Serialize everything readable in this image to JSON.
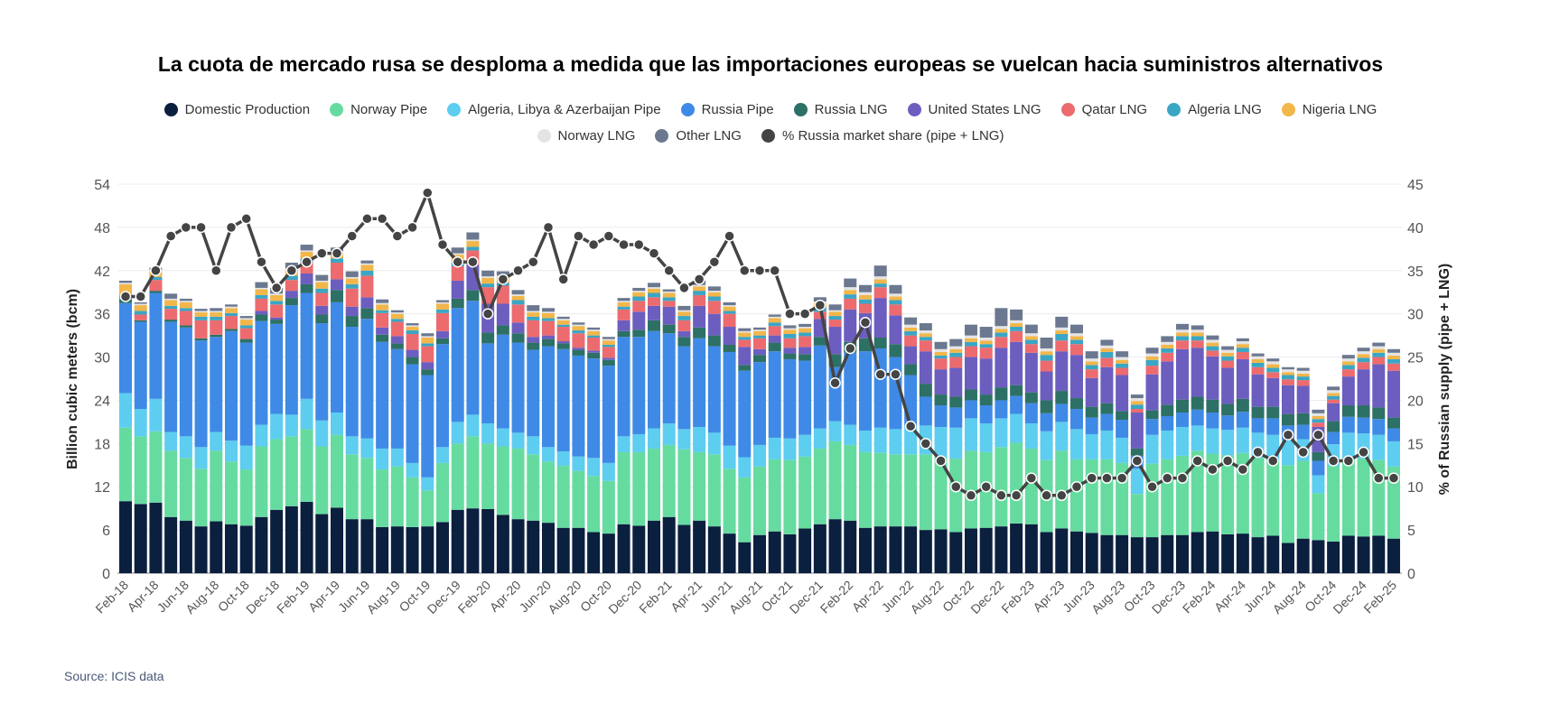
{
  "chart_data": {
    "type": "bar",
    "stacked": true,
    "title": "La cuota de mercado rusa se desploma a medida que las importaciones europeas se vuelcan hacia suministros alternativos",
    "ylabel": "Billion cubic meters (bcm)",
    "y2label": "% of Russian supply (pipe + LNG)",
    "ylim": [
      0,
      54
    ],
    "y2lim": [
      0,
      45
    ],
    "yticks": [
      0,
      6,
      12,
      18,
      24,
      30,
      36,
      42,
      48,
      54
    ],
    "y2ticks": [
      0,
      5,
      10,
      15,
      20,
      25,
      30,
      35,
      40,
      45
    ],
    "grid": true,
    "legend_position": "top",
    "categories": [
      "Feb-18",
      "Mar-18",
      "Apr-18",
      "May-18",
      "Jun-18",
      "Jul-18",
      "Aug-18",
      "Sep-18",
      "Oct-18",
      "Nov-18",
      "Dec-18",
      "Jan-19",
      "Feb-19",
      "Mar-19",
      "Apr-19",
      "May-19",
      "Jun-19",
      "Jul-19",
      "Aug-19",
      "Sep-19",
      "Oct-19",
      "Nov-19",
      "Dec-19",
      "Jan-20",
      "Feb-20",
      "Mar-20",
      "Apr-20",
      "May-20",
      "Jun-20",
      "Jul-20",
      "Aug-20",
      "Sep-20",
      "Oct-20",
      "Nov-20",
      "Dec-20",
      "Jan-21",
      "Feb-21",
      "Mar-21",
      "Apr-21",
      "May-21",
      "Jun-21",
      "Jul-21",
      "Aug-21",
      "Sep-21",
      "Oct-21",
      "Nov-21",
      "Dec-21",
      "Jan-22",
      "Feb-22",
      "Mar-22",
      "Apr-22",
      "May-22",
      "Jun-22",
      "Jul-22",
      "Aug-22",
      "Sep-22",
      "Oct-22",
      "Nov-22",
      "Dec-22",
      "Jan-23",
      "Feb-23",
      "Mar-23",
      "Apr-23",
      "May-23",
      "Jun-23",
      "Jul-23",
      "Aug-23",
      "Sep-23",
      "Oct-23",
      "Nov-23",
      "Dec-23",
      "Jan-24",
      "Feb-24",
      "Mar-24",
      "Apr-24",
      "May-24",
      "Jun-24",
      "Jul-24",
      "Aug-24",
      "Sep-24",
      "Oct-24",
      "Nov-24",
      "Dec-24",
      "Jan-25",
      "Feb-25"
    ],
    "series": [
      {
        "name": "Domestic Production",
        "color": "#0b1f3f",
        "values": [
          10.0,
          9.6,
          9.8,
          7.8,
          7.3,
          6.5,
          7.2,
          6.8,
          6.6,
          7.8,
          8.8,
          9.3,
          9.9,
          8.2,
          9.1,
          7.5,
          7.5,
          6.4,
          6.5,
          6.4,
          6.5,
          7.1,
          8.8,
          9.0,
          8.9,
          8.1,
          7.5,
          7.3,
          7.0,
          6.3,
          6.3,
          5.7,
          5.5,
          6.8,
          6.6,
          7.3,
          7.8,
          6.7,
          7.3,
          6.5,
          5.5,
          4.3,
          5.3,
          5.8,
          5.4,
          6.2,
          6.8,
          7.5,
          7.3,
          6.3,
          6.5,
          6.5,
          6.5,
          6.0,
          6.1,
          5.7,
          6.2,
          6.3,
          6.5,
          6.9,
          6.8,
          5.7,
          6.2,
          5.8,
          5.6,
          5.3,
          5.3,
          5.0,
          5.0,
          5.3,
          5.3,
          5.7,
          5.8,
          5.4,
          5.5,
          5.0,
          5.2,
          4.2,
          4.8,
          4.6,
          4.4,
          5.2,
          5.1,
          5.2,
          4.8
        ]
      },
      {
        "name": "Norway Pipe",
        "color": "#66dba0",
        "values": [
          10.2,
          9.4,
          9.9,
          9.2,
          8.7,
          8.0,
          9.8,
          8.7,
          7.8,
          9.8,
          9.8,
          9.7,
          10.1,
          9.4,
          10.1,
          9.0,
          8.5,
          8.0,
          8.3,
          6.9,
          5.0,
          8.2,
          9.2,
          10.0,
          9.1,
          9.5,
          9.8,
          9.2,
          8.5,
          8.6,
          7.9,
          7.8,
          7.3,
          10.0,
          10.2,
          10.0,
          10.0,
          10.5,
          9.5,
          10.0,
          9.0,
          9.0,
          9.5,
          10.0,
          10.3,
          10.0,
          10.5,
          10.8,
          10.5,
          10.5,
          10.2,
          10.0,
          10.0,
          10.5,
          10.0,
          10.2,
          10.8,
          10.5,
          11.0,
          11.2,
          10.5,
          10.0,
          10.8,
          10.0,
          10.2,
          10.5,
          10.0,
          6.0,
          10.2,
          10.5,
          11.0,
          11.3,
          10.8,
          11.0,
          11.2,
          11.0,
          10.5,
          10.8,
          10.8,
          6.5,
          10.5,
          10.8,
          10.8,
          10.5,
          10.0
        ]
      },
      {
        "name": "Algeria, Libya & Azerbaijan Pipe",
        "color": "#5dcdf0",
        "values": [
          4.8,
          3.8,
          4.5,
          2.6,
          3.0,
          3.0,
          2.6,
          2.9,
          3.3,
          3.0,
          3.5,
          3.0,
          4.2,
          3.6,
          3.1,
          2.5,
          2.7,
          2.9,
          2.5,
          2.0,
          1.8,
          2.2,
          3.0,
          3.0,
          2.8,
          2.5,
          2.2,
          2.5,
          2.0,
          2.0,
          2.0,
          2.5,
          2.5,
          2.2,
          2.5,
          2.8,
          3.0,
          2.8,
          3.5,
          3.0,
          3.2,
          2.8,
          3.0,
          3.0,
          3.0,
          3.0,
          2.8,
          2.8,
          2.8,
          3.0,
          3.5,
          3.5,
          4.0,
          4.0,
          4.2,
          4.3,
          4.5,
          4.0,
          4.0,
          4.0,
          3.5,
          4.0,
          4.0,
          4.2,
          3.5,
          4.0,
          3.5,
          3.5,
          4.0,
          4.0,
          4.0,
          3.5,
          3.5,
          3.5,
          3.5,
          3.5,
          3.5,
          3.5,
          3.0,
          2.5,
          3.0,
          3.5,
          3.5,
          3.5,
          3.5
        ]
      },
      {
        "name": "Russia Pipe",
        "color": "#3f8ae6",
        "values": [
          12.5,
          12.1,
          14.7,
          15.3,
          15.1,
          14.8,
          13.2,
          15.2,
          14.3,
          14.4,
          12.5,
          15.2,
          14.7,
          13.5,
          15.3,
          15.2,
          16.6,
          14.8,
          13.8,
          13.7,
          14.2,
          14.3,
          15.8,
          15.8,
          11.1,
          13.0,
          12.5,
          12.0,
          14.0,
          14.2,
          14.0,
          13.8,
          13.5,
          13.8,
          13.5,
          13.5,
          12.5,
          11.5,
          12.3,
          12.0,
          13.0,
          12.0,
          11.5,
          12.0,
          11.0,
          10.3,
          11.5,
          7.5,
          10.0,
          11.0,
          11.0,
          10.0,
          7.0,
          4.0,
          3.0,
          2.8,
          2.5,
          2.5,
          2.5,
          2.5,
          2.8,
          2.5,
          2.5,
          2.8,
          2.3,
          2.3,
          2.5,
          1.8,
          2.2,
          2.0,
          2.0,
          2.2,
          2.2,
          2.0,
          2.2,
          2.0,
          2.3,
          2.0,
          2.0,
          2.0,
          1.7,
          2.2,
          2.2,
          2.2,
          1.8
        ]
      },
      {
        "name": "Russia LNG",
        "color": "#2d7066",
        "values": [
          0.5,
          0.2,
          0.3,
          0.3,
          0.3,
          0.3,
          0.3,
          0.3,
          0.5,
          0.9,
          0.6,
          1.0,
          1.2,
          1.2,
          1.7,
          1.5,
          1.5,
          1.0,
          0.8,
          1.0,
          0.8,
          0.8,
          1.3,
          1.5,
          1.5,
          1.3,
          1.3,
          1.0,
          1.0,
          0.8,
          0.8,
          0.8,
          0.8,
          0.8,
          1.0,
          1.5,
          1.2,
          1.3,
          1.5,
          1.5,
          1.0,
          0.8,
          1.0,
          1.2,
          0.8,
          0.9,
          1.2,
          1.8,
          1.5,
          1.8,
          1.5,
          1.8,
          1.5,
          1.8,
          1.5,
          1.5,
          1.5,
          1.5,
          1.8,
          1.5,
          1.5,
          1.8,
          1.8,
          1.5,
          1.5,
          1.5,
          1.2,
          1.0,
          1.2,
          1.6,
          1.8,
          1.8,
          1.8,
          1.6,
          1.8,
          1.6,
          1.6,
          1.6,
          1.6,
          1.2,
          1.5,
          1.6,
          1.7,
          1.6,
          1.5
        ]
      },
      {
        "name": "United States LNG",
        "color": "#6c5ebf",
        "values": [
          0,
          0,
          0,
          0,
          0,
          0,
          0,
          0,
          0,
          0.5,
          0.3,
          1.0,
          1.5,
          1.2,
          1.5,
          1.3,
          1.5,
          1.0,
          1.0,
          1.0,
          1.0,
          1.0,
          2.5,
          3.5,
          4.0,
          3.0,
          1.5,
          0.8,
          0.5,
          0.3,
          0.3,
          0.3,
          0.3,
          1.5,
          2.5,
          2.0,
          2.5,
          0.8,
          3.0,
          3.0,
          2.5,
          2.5,
          0.8,
          1.0,
          0.8,
          1.0,
          2.5,
          3.8,
          4.5,
          3.5,
          5.5,
          4.0,
          2.5,
          4.5,
          3.5,
          4.0,
          4.5,
          5.0,
          5.5,
          6.0,
          5.5,
          4.0,
          5.5,
          6.0,
          4.0,
          5.0,
          5.0,
          5.0,
          5.0,
          6.0,
          7.0,
          6.8,
          6.0,
          5.0,
          5.5,
          4.5,
          4.0,
          4.0,
          3.8,
          3.5,
          2.5,
          4.0,
          5.0,
          6.0,
          6.5
        ]
      },
      {
        "name": "Qatar LNG",
        "color": "#ec6b6f",
        "values": [
          0,
          0.8,
          1.5,
          1.5,
          2.0,
          2.5,
          2.0,
          1.8,
          1.5,
          1.7,
          1.8,
          1.5,
          1.5,
          1.8,
          2.3,
          2.5,
          3.0,
          2.0,
          2.0,
          2.2,
          2.2,
          2.5,
          2.0,
          2.0,
          2.3,
          2.5,
          2.5,
          2.3,
          2.0,
          2.0,
          2.0,
          1.8,
          1.5,
          1.5,
          1.5,
          1.2,
          0.8,
          1.5,
          1.5,
          1.8,
          1.8,
          1.0,
          1.5,
          1.3,
          1.3,
          1.5,
          1.0,
          1.0,
          1.5,
          1.3,
          1.5,
          1.5,
          1.5,
          1.5,
          1.5,
          1.5,
          1.5,
          1.5,
          1.5,
          1.5,
          1.2,
          1.5,
          1.5,
          1.5,
          1.2,
          1.3,
          1.0,
          0.5,
          1.2,
          1.2,
          1.2,
          1.0,
          0.8,
          1.0,
          1.0,
          1.0,
          0.8,
          0.8,
          0.8,
          0.6,
          0.5,
          1.0,
          1.0,
          1.0,
          1.0
        ]
      },
      {
        "name": "Algeria LNG",
        "color": "#3aa6c4",
        "values": [
          0.6,
          0.5,
          0.4,
          0.4,
          0.4,
          0.5,
          0.5,
          0.4,
          0.4,
          0.5,
          0.5,
          0.6,
          0.6,
          0.6,
          0.6,
          0.6,
          0.7,
          0.4,
          0.4,
          0.5,
          0.4,
          0.5,
          0.6,
          0.5,
          0.5,
          0.4,
          0.6,
          0.5,
          0.4,
          0.3,
          0.4,
          0.3,
          0.3,
          0.4,
          0.6,
          0.6,
          0.5,
          0.6,
          0.6,
          0.6,
          0.4,
          0.4,
          0.4,
          0.5,
          0.6,
          0.5,
          0.6,
          0.5,
          0.6,
          0.6,
          0.5,
          0.6,
          0.6,
          0.5,
          0.4,
          0.6,
          0.6,
          0.5,
          0.6,
          0.6,
          0.6,
          0.8,
          0.9,
          0.6,
          0.6,
          0.8,
          0.6,
          0.6,
          0.8,
          0.6,
          0.6,
          0.6,
          0.6,
          0.6,
          0.6,
          0.6,
          0.6,
          0.6,
          0.5,
          0.5,
          0.5,
          0.6,
          0.6,
          0.6,
          0.6
        ]
      },
      {
        "name": "Nigeria LNG",
        "color": "#f2b64a",
        "values": [
          1.5,
          0.8,
          0.8,
          0.8,
          0.8,
          0.6,
          0.6,
          0.7,
          0.8,
          0.8,
          0.8,
          0.8,
          0.9,
          0.9,
          0.8,
          0.8,
          0.8,
          0.8,
          0.7,
          0.5,
          0.8,
          0.8,
          1.0,
          0.8,
          0.8,
          0.8,
          0.6,
          0.6,
          0.7,
          0.6,
          0.6,
          0.6,
          0.6,
          0.6,
          0.6,
          0.6,
          0.6,
          0.6,
          0.6,
          0.6,
          0.6,
          0.6,
          0.6,
          0.6,
          0.6,
          0.6,
          0.6,
          0.6,
          0.6,
          0.6,
          0.6,
          0.5,
          0.5,
          0.5,
          0.5,
          0.5,
          0.5,
          0.5,
          0.5,
          0.5,
          0.5,
          0.5,
          0.5,
          0.5,
          0.5,
          0.5,
          0.5,
          0.5,
          0.5,
          0.5,
          0.5,
          0.5,
          0.5,
          0.5,
          0.5,
          0.5,
          0.5,
          0.4,
          0.4,
          0.4,
          0.4,
          0.5,
          0.5,
          0.5,
          0.5
        ]
      },
      {
        "name": "Norway LNG",
        "color": "#e4e4e4",
        "values": [
          0.2,
          0.2,
          0.2,
          0.2,
          0.2,
          0.2,
          0.2,
          0.2,
          0.2,
          0.2,
          0.2,
          0.2,
          0.2,
          0.2,
          0.2,
          0.2,
          0.2,
          0.2,
          0.2,
          0.2,
          0.2,
          0.2,
          0.2,
          0.2,
          0.2,
          0.2,
          0.2,
          0.2,
          0.2,
          0.2,
          0.2,
          0.2,
          0.2,
          0.2,
          0.2,
          0.2,
          0.2,
          0.2,
          0.2,
          0.2,
          0.2,
          0.2,
          0.2,
          0.2,
          0.2,
          0.2,
          0.2,
          0.2,
          0.4,
          0.4,
          0.4,
          0.4,
          0.4,
          0.4,
          0.4,
          0.4,
          0.4,
          0.4,
          0.4,
          0.4,
          0.4,
          0.4,
          0.4,
          0.4,
          0.4,
          0.4,
          0.4,
          0.4,
          0.4,
          0.4,
          0.4,
          0.4,
          0.4,
          0.4,
          0.4,
          0.4,
          0.4,
          0.4,
          0.4,
          0.4,
          0.4,
          0.4,
          0.4,
          0.4,
          0.4
        ]
      },
      {
        "name": "Other LNG",
        "color": "#6b7890",
        "values": [
          0.3,
          0.2,
          0.3,
          0.7,
          0.3,
          0.3,
          0.4,
          0.3,
          0.3,
          0.8,
          0.8,
          0.8,
          0.8,
          0.8,
          0.5,
          0.8,
          0.4,
          0.5,
          0.3,
          0.3,
          0.4,
          0.3,
          0.8,
          1.0,
          0.8,
          0.6,
          0.6,
          0.8,
          0.5,
          0.3,
          0.3,
          0.3,
          0.3,
          0.4,
          0.4,
          0.6,
          0.3,
          0.6,
          0.6,
          0.6,
          0.4,
          0.4,
          0.3,
          0.3,
          0.4,
          0.4,
          0.6,
          0.8,
          1.2,
          1.0,
          1.5,
          1.2,
          1.0,
          1.0,
          1.0,
          1.0,
          1.5,
          1.5,
          2.5,
          1.5,
          1.2,
          1.5,
          1.5,
          1.2,
          1.0,
          0.8,
          0.8,
          0.5,
          0.8,
          0.8,
          0.8,
          0.6,
          0.6,
          0.5,
          0.4,
          0.4,
          0.4,
          0.3,
          0.4,
          0.5,
          0.5,
          0.5,
          0.5,
          0.5,
          0.5
        ]
      }
    ],
    "line_series": {
      "name": "% Russia market share (pipe + LNG)",
      "color": "#444444",
      "axis": "right",
      "values": [
        32,
        32,
        35,
        39,
        40,
        40,
        35,
        40,
        41,
        36,
        33,
        35,
        36,
        37,
        37,
        39,
        41,
        41,
        39,
        40,
        44,
        38,
        36,
        36,
        30,
        34,
        35,
        36,
        40,
        34,
        39,
        38,
        39,
        38,
        38,
        37,
        35,
        33,
        34,
        36,
        39,
        35,
        35,
        35,
        30,
        30,
        31,
        22,
        26,
        29,
        23,
        23,
        17,
        15,
        13,
        10,
        9,
        10,
        9,
        9,
        11,
        9,
        9,
        10,
        11,
        11,
        11,
        13,
        10,
        11,
        11,
        13,
        12,
        13,
        12,
        14,
        13,
        16,
        14,
        16,
        13,
        13,
        14,
        11,
        11
      ]
    }
  },
  "source": "Source: ICIS data"
}
